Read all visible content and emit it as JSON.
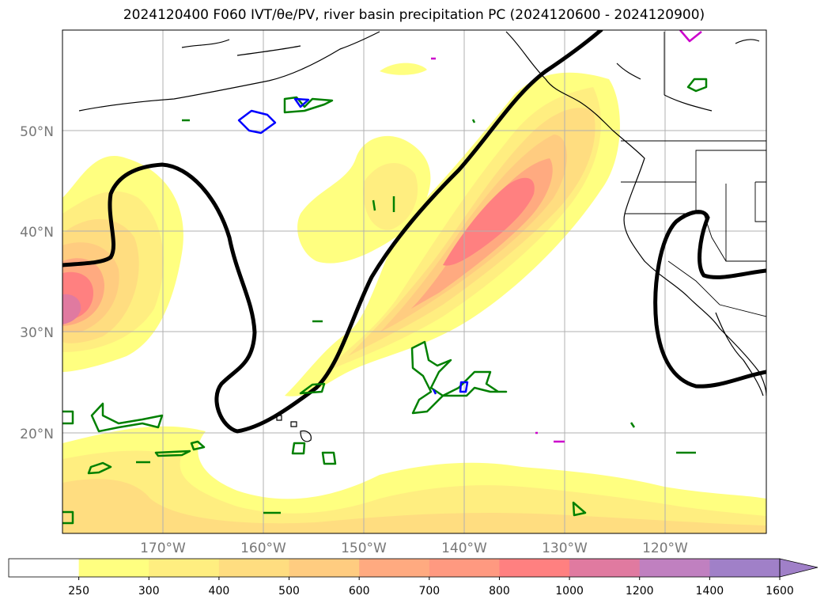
{
  "title": "2024120400 F060 IVT/θe/PV, river basin precipitation PC (2024120600 - 2024120900)",
  "map": {
    "lon_range": [
      -180,
      -110
    ],
    "lat_range": [
      10,
      60
    ],
    "lat_labels": [
      "50°N",
      "40°N",
      "30°N",
      "20°N"
    ],
    "lon_labels": [
      "170°W",
      "160°W",
      "150°W",
      "140°W",
      "130°W",
      "120°W"
    ],
    "grid": true
  },
  "colorbar": {
    "ticks": [
      "250",
      "300",
      "400",
      "500",
      "600",
      "700",
      "800",
      "1000",
      "1200",
      "1400",
      "1600"
    ],
    "colors": [
      "#ffffff",
      "#ffff80",
      "#ffee80",
      "#ffdd80",
      "#ffcc80",
      "#ffaa80",
      "#ff9980",
      "#ff8080",
      "#e07aa0",
      "#c080c0",
      "#a080c8"
    ],
    "extend": "max"
  },
  "legend_colors": {
    "theta_e": "#000000",
    "pv_positive": "#008000",
    "pv_blue": "#0000ff",
    "pv_magenta": "#cc00cc"
  }
}
